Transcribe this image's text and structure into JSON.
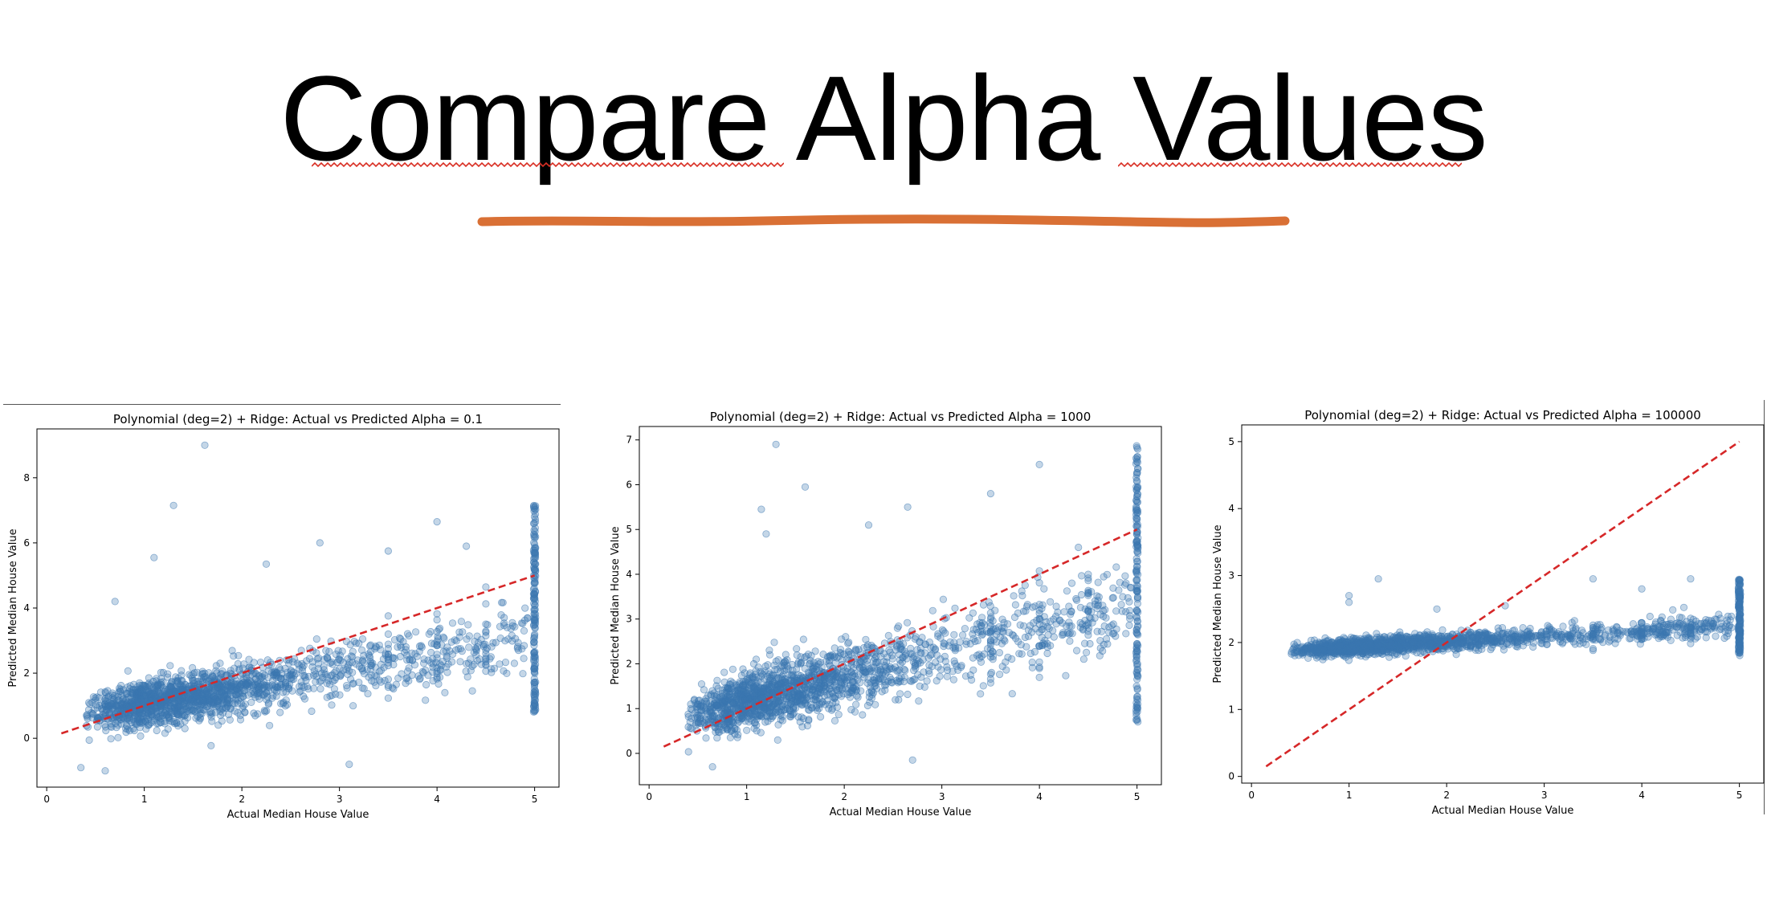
{
  "slide": {
    "title": "Compare Alpha Values",
    "underline_color": "#d97035",
    "spellcheck_color": "#d93025"
  },
  "chart_data": [
    {
      "type": "scatter",
      "title": "Polynomial (deg=2) + Ridge: Actual vs Predicted Alpha = 0.1",
      "xlabel": "Actual Median House Value",
      "ylabel": "Predicted Median House Value",
      "xlim": [
        -0.1,
        5.25
      ],
      "ylim": [
        -1.5,
        9.5
      ],
      "xticks": [
        0,
        1,
        2,
        3,
        4,
        5
      ],
      "yticks": [
        0,
        2,
        4,
        6,
        8
      ],
      "point_color": "#3a76b0",
      "reference_line": {
        "x": [
          0.15,
          5.0
        ],
        "y": [
          0.15,
          5.0
        ],
        "color": "#d62728",
        "style": "dashed"
      },
      "fit": {
        "slope": 0.5,
        "intercept": 0.55,
        "noise": 0.55
      },
      "cap_cluster": {
        "x": 5.0,
        "y_range": [
          0.8,
          7.2
        ]
      },
      "outliers": [
        [
          1.62,
          9.0
        ],
        [
          1.3,
          7.15
        ],
        [
          4.0,
          6.65
        ],
        [
          2.8,
          6.0
        ],
        [
          1.1,
          5.55
        ],
        [
          2.25,
          5.35
        ],
        [
          3.5,
          5.75
        ],
        [
          4.3,
          5.9
        ],
        [
          0.7,
          4.2
        ],
        [
          3.1,
          -0.8
        ],
        [
          0.35,
          -0.9
        ],
        [
          0.6,
          -1.0
        ]
      ]
    },
    {
      "type": "scatter",
      "title": "Polynomial (deg=2) + Ridge: Actual vs Predicted Alpha = 1000",
      "xlabel": "Actual Median House Value",
      "ylabel": "Predicted Median House Value",
      "xlim": [
        -0.1,
        5.25
      ],
      "ylim": [
        -0.7,
        7.3
      ],
      "xticks": [
        0,
        1,
        2,
        3,
        4,
        5
      ],
      "yticks": [
        0,
        1,
        2,
        3,
        4,
        5,
        6,
        7
      ],
      "point_color": "#3a76b0",
      "reference_line": {
        "x": [
          0.15,
          5.0
        ],
        "y": [
          0.15,
          5.0
        ],
        "color": "#d62728",
        "style": "dashed"
      },
      "fit": {
        "slope": 0.55,
        "intercept": 0.6,
        "noise": 0.5
      },
      "cap_cluster": {
        "x": 5.0,
        "y_range": [
          0.7,
          6.9
        ]
      },
      "outliers": [
        [
          1.3,
          6.9
        ],
        [
          1.6,
          5.95
        ],
        [
          4.0,
          6.45
        ],
        [
          1.15,
          5.45
        ],
        [
          2.25,
          5.1
        ],
        [
          2.65,
          5.5
        ],
        [
          3.5,
          5.8
        ],
        [
          4.4,
          4.6
        ],
        [
          1.2,
          4.9
        ],
        [
          2.7,
          -0.15
        ],
        [
          0.65,
          -0.3
        ]
      ]
    },
    {
      "type": "scatter",
      "title": "Polynomial (deg=2) + Ridge: Actual vs Predicted Alpha = 100000",
      "xlabel": "Actual Median House Value",
      "ylabel": "Predicted Median House Value",
      "xlim": [
        -0.1,
        5.25
      ],
      "ylim": [
        -0.1,
        5.25
      ],
      "xticks": [
        0,
        1,
        2,
        3,
        4,
        5
      ],
      "yticks": [
        0,
        1,
        2,
        3,
        4,
        5
      ],
      "point_color": "#3a76b0",
      "reference_line": {
        "x": [
          0.15,
          5.0
        ],
        "y": [
          0.15,
          5.0
        ],
        "color": "#d62728",
        "style": "dashed"
      },
      "fit": {
        "slope": 0.08,
        "intercept": 1.85,
        "noise": 0.09
      },
      "cap_cluster": {
        "x": 5.0,
        "y_range": [
          1.8,
          2.95
        ]
      },
      "outliers": [
        [
          1.3,
          2.95
        ],
        [
          1.0,
          2.7
        ],
        [
          1.0,
          2.6
        ],
        [
          4.0,
          2.8
        ],
        [
          3.5,
          2.95
        ],
        [
          4.5,
          2.95
        ],
        [
          2.6,
          2.55
        ],
        [
          1.9,
          2.5
        ]
      ]
    }
  ]
}
